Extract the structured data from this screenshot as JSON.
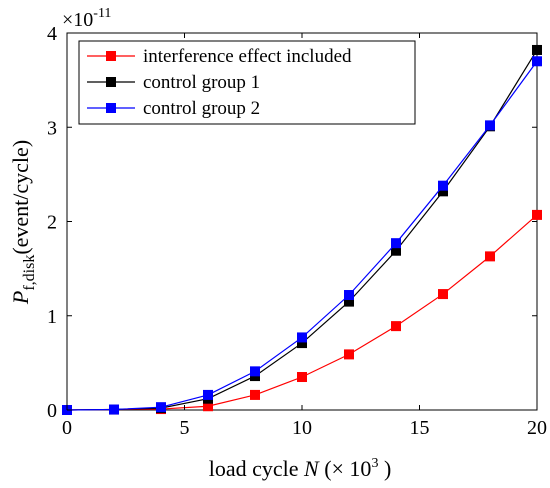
{
  "chart_data": {
    "type": "line",
    "x": [
      0,
      2,
      4,
      6,
      8,
      10,
      12,
      14,
      16,
      18,
      20
    ],
    "series": [
      {
        "name": "interference effect included",
        "color": "#ff0000",
        "values": [
          0,
          0.005,
          0.01,
          0.04,
          0.16,
          0.35,
          0.59,
          0.89,
          1.23,
          1.63,
          2.07
        ]
      },
      {
        "name": "control group 1",
        "color": "#000000",
        "values": [
          0,
          0.005,
          0.02,
          0.12,
          0.36,
          0.71,
          1.15,
          1.69,
          2.32,
          3.01,
          3.82
        ]
      },
      {
        "name": "control group 2",
        "color": "#0000ff",
        "values": [
          0,
          0.005,
          0.03,
          0.16,
          0.41,
          0.77,
          1.22,
          1.77,
          2.38,
          3.02,
          3.7
        ]
      }
    ],
    "xlim": [
      0,
      20
    ],
    "ylim": [
      0,
      4
    ],
    "xticks": [
      "0",
      "5",
      "10",
      "15",
      "20"
    ],
    "yticks": [
      "0",
      "1",
      "2",
      "3",
      "4"
    ],
    "x_tick_values": [
      0,
      5,
      10,
      15,
      20
    ],
    "y_tick_values": [
      0,
      1,
      2,
      3,
      4
    ],
    "xlabel_prefix": "load cycle ",
    "xlabel_var": "N",
    "xlabel_suffix": " (× 10",
    "xlabel_exp": "3",
    "xlabel_close": " )",
    "ylabel_var": "P",
    "ylabel_sub": "f,disk",
    "ylabel_unit": "(event/cycle)",
    "y_multiplier_base": "×10",
    "y_multiplier_exp": "-11",
    "legend_position": "top-left",
    "grid": false,
    "marker": "square"
  }
}
